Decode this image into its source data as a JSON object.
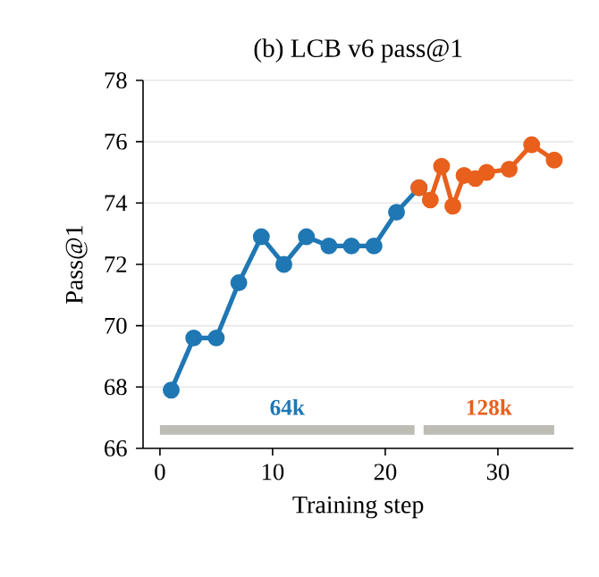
{
  "chart_data": {
    "type": "line",
    "title": "(b) LCB v6 pass@1",
    "xlabel": "Training step",
    "ylabel": "Pass@1",
    "series": [
      {
        "color": "#1f77b4",
        "x": [
          1,
          3,
          5,
          7,
          9,
          11,
          13,
          15,
          17,
          19,
          21,
          23
        ],
        "values": [
          67.9,
          69.6,
          69.6,
          71.4,
          72.9,
          72.0,
          72.9,
          72.6,
          72.6,
          72.6,
          73.7,
          74.5
        ]
      },
      {
        "color": "#e8601c",
        "x": [
          23,
          24,
          25,
          26,
          27,
          28,
          29,
          31,
          33,
          35
        ],
        "values": [
          74.5,
          74.1,
          75.2,
          73.9,
          74.9,
          74.8,
          75.0,
          75.1,
          75.9,
          75.4
        ]
      },
      {
        "color": "#bdbdb5",
        "marker": "none",
        "x": [
          0,
          22.6
        ],
        "values": [
          66.6,
          66.6
        ]
      },
      {
        "color": "#bdbdb5",
        "marker": "none",
        "x": [
          23.4,
          35
        ],
        "values": [
          66.6,
          66.6
        ]
      }
    ],
    "annotations": [
      "64k",
      "128k"
    ],
    "xlim": [
      -1.5,
      36.7
    ],
    "ylim": [
      66,
      78
    ],
    "xticks": [
      0,
      10,
      20,
      30
    ],
    "yticks": [
      66,
      68,
      70,
      72,
      74,
      76,
      78
    ],
    "grid": "y",
    "marker": "circle",
    "line_style": "solid"
  }
}
